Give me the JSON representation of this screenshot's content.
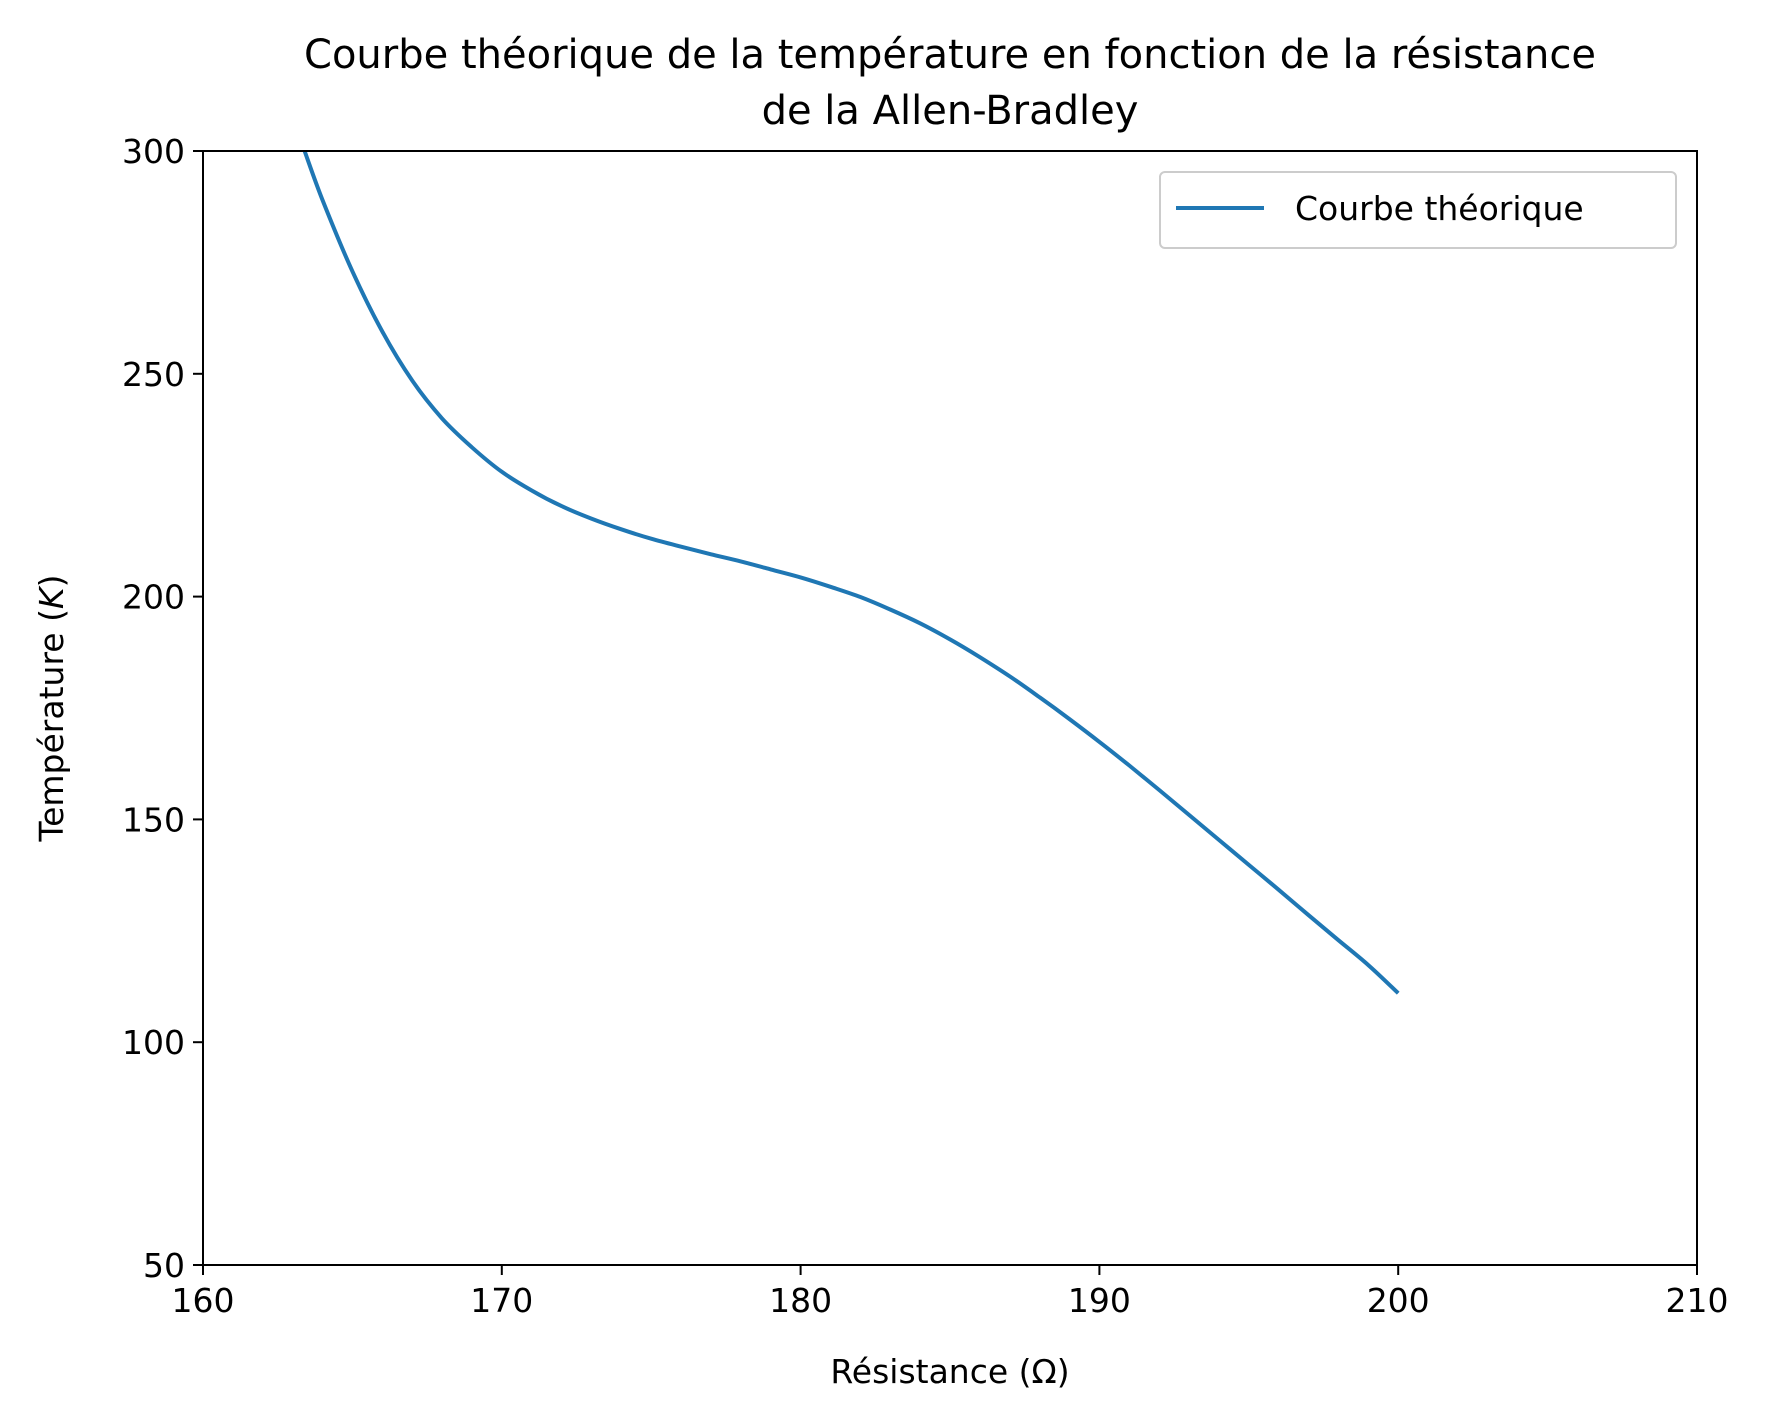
{
  "chart_data": {
    "type": "line",
    "title_line1": "Courbe théorique de la température en fonction de la résistance",
    "title_line2": "de la Allen-Bradley",
    "xlabel": "Résistance (Ω)",
    "ylabel_prefix": "Température (",
    "ylabel_var": "K",
    "ylabel_suffix": ")",
    "xlim": [
      160,
      210
    ],
    "ylim": [
      50,
      300
    ],
    "xticks": [
      160,
      170,
      180,
      190,
      200,
      210
    ],
    "yticks": [
      50,
      100,
      150,
      200,
      250,
      300
    ],
    "grid": false,
    "legend_position": "top-right",
    "series": [
      {
        "name": "Courbe théorique",
        "color": "#1f77b4",
        "x": [
          163.4,
          164.0,
          165.0,
          166.0,
          167.0,
          168.0,
          169.0,
          170.0,
          171.0,
          172.0,
          173.0,
          174.0,
          175.0,
          176.0,
          177.0,
          178.0,
          179.0,
          180.0,
          181.0,
          182.0,
          183.0,
          184.0,
          185.0,
          186.0,
          187.0,
          188.0,
          189.0,
          190.0,
          191.0,
          192.0,
          193.0,
          194.0,
          195.0,
          196.0,
          197.0,
          198.0,
          199.0,
          200.0
        ],
        "y": [
          300.0,
          289.0,
          273.0,
          259.5,
          248.5,
          240.0,
          233.5,
          228.0,
          223.8,
          220.3,
          217.5,
          215.1,
          213.0,
          211.2,
          209.5,
          207.9,
          206.1,
          204.3,
          202.2,
          199.9,
          197.1,
          194.0,
          190.4,
          186.4,
          182.1,
          177.4,
          172.5,
          167.4,
          162.1,
          156.6,
          151.0,
          145.4,
          139.8,
          134.2,
          128.5,
          122.9,
          117.3,
          111.0
        ]
      }
    ]
  }
}
